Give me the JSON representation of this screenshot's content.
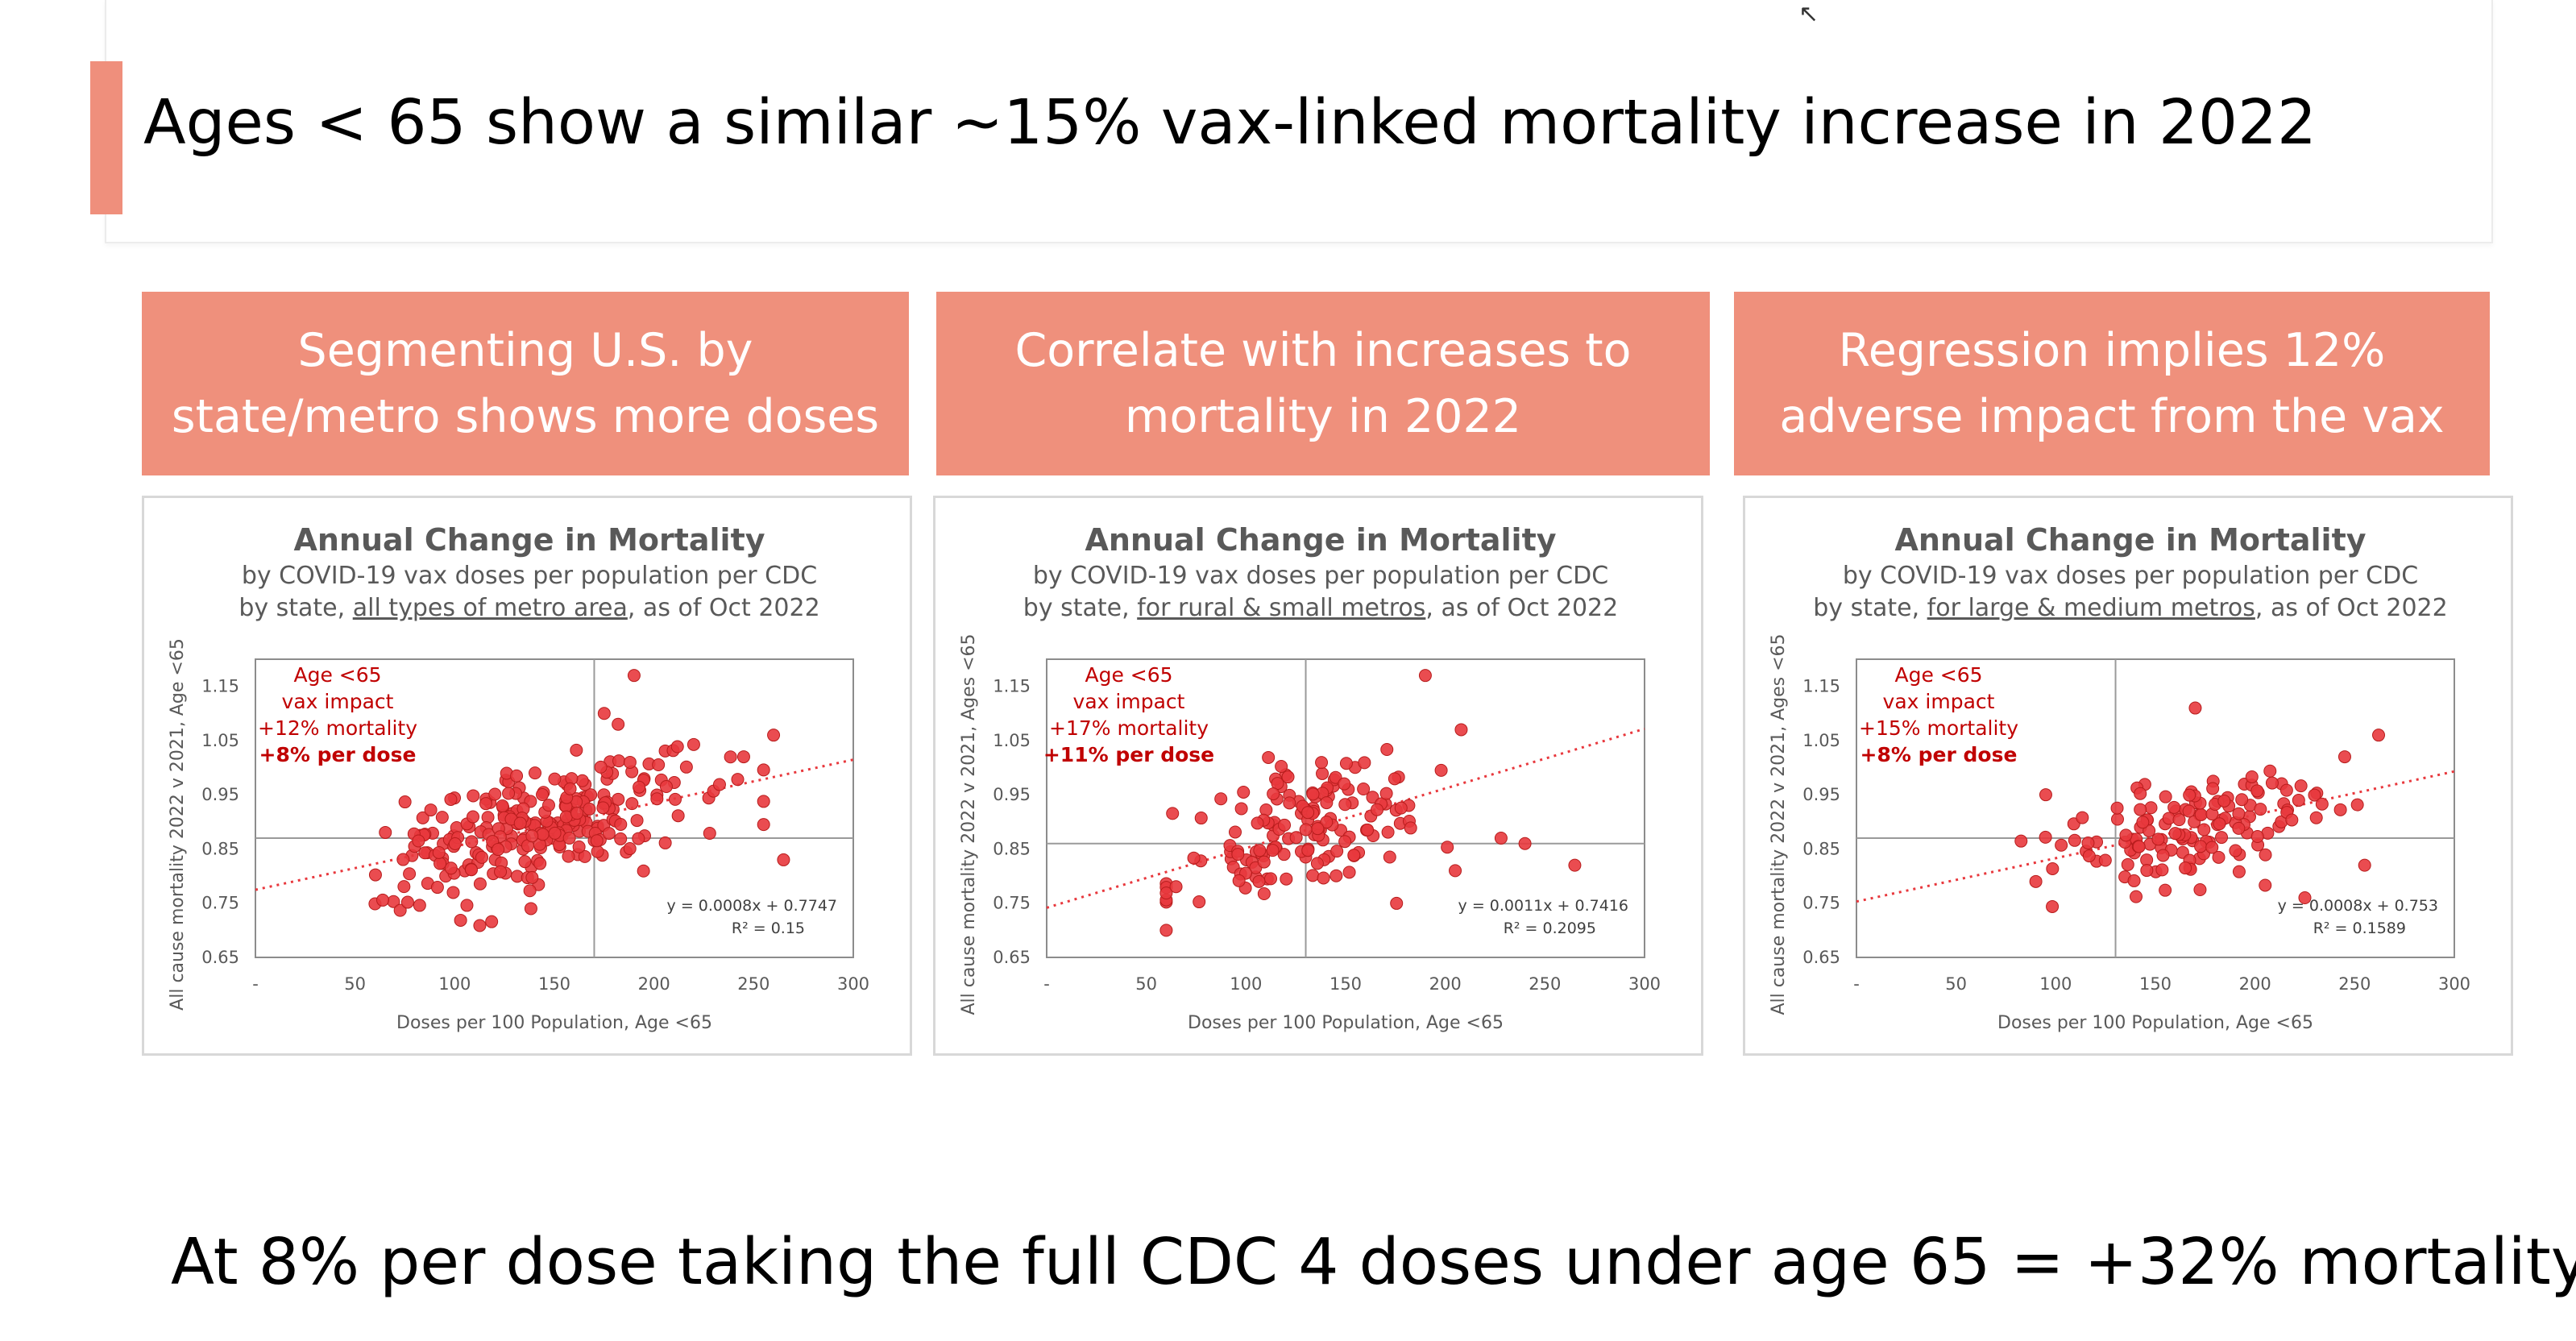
{
  "slide": {
    "title": "Ages < 65 show a similar ~15% vax-linked mortality increase in 2022",
    "footer": "At 8% per dose taking the full CDC 4 doses under age 65 = +32% mortality"
  },
  "headers": [
    "Segmenting U.S. by\nstate/metro shows more doses",
    "Correlate with increases to\nmortality in 2022",
    "Regression implies 12%\nadverse impact from the vax"
  ],
  "colors": {
    "accent": "#ef907c",
    "points": "#e8383d",
    "annotation": "#c00000"
  },
  "chart_data": [
    {
      "type": "scatter",
      "title": "Annual Change in Mortality",
      "subtitle1": "by COVID-19 vax doses per population per CDC",
      "subtitle2_pre": "by state, ",
      "subtitle2_link": "all types of metro area",
      "subtitle2_post": ", as of Oct 2022",
      "xlabel": "Doses per 100 Population, Age <65",
      "ylabel": "All cause mortality 2022 v 2021, Age <65",
      "xticks": [
        "-",
        "50",
        "100",
        "150",
        "200",
        "250",
        "300"
      ],
      "yticks": [
        "1.15",
        "1.05",
        "0.95",
        "0.85",
        "0.75",
        "0.65"
      ],
      "xlim": [
        0,
        300
      ],
      "ylim": [
        0.65,
        1.2
      ],
      "ref_x": 170,
      "ref_y": 0.87,
      "annotation": {
        "line1": "Age <65",
        "line2": "vax impact",
        "line3": "+12% mortality",
        "line4": "+8% per dose"
      },
      "trend": {
        "slope": 0.0008,
        "intercept": 0.7747,
        "equation": "y = 0.0008x + 0.7747",
        "r2": "R² = 0.15"
      },
      "seed": 7,
      "n": 260,
      "xmean": 140,
      "xsd": 38,
      "noise": 0.055,
      "outliers": [
        [
          190,
          1.17
        ],
        [
          260,
          1.06
        ],
        [
          265,
          0.83
        ],
        [
          245,
          1.02
        ],
        [
          175,
          1.1
        ],
        [
          182,
          1.08
        ]
      ]
    },
    {
      "type": "scatter",
      "title": "Annual Change in Mortality",
      "subtitle1": "by COVID-19 vax doses per population per CDC",
      "subtitle2_pre": "by state, ",
      "subtitle2_link": "for rural & small metros",
      "subtitle2_post": ", as of Oct 2022",
      "xlabel": "Doses per 100 Population, Age <65",
      "ylabel": "All cause mortality 2022 v 2021, Ages <65",
      "xticks": [
        "-",
        "50",
        "100",
        "150",
        "200",
        "250",
        "300"
      ],
      "yticks": [
        "1.15",
        "1.05",
        "0.95",
        "0.85",
        "0.75",
        "0.65"
      ],
      "xlim": [
        0,
        300
      ],
      "ylim": [
        0.65,
        1.2
      ],
      "ref_x": 130,
      "ref_y": 0.86,
      "annotation": {
        "line1": "Age <65",
        "line2": "vax impact",
        "line3": "+17% mortality",
        "line4": "+11% per dose"
      },
      "trend": {
        "slope": 0.0011,
        "intercept": 0.7416,
        "equation": "y = 0.0011x + 0.7416",
        "r2": "R² = 0.2095"
      },
      "seed": 21,
      "n": 150,
      "xmean": 130,
      "xsd": 32,
      "noise": 0.06,
      "outliers": [
        [
          190,
          1.17
        ],
        [
          240,
          0.86
        ],
        [
          265,
          0.82
        ],
        [
          208,
          1.07
        ],
        [
          205,
          0.81
        ],
        [
          228,
          0.87
        ]
      ]
    },
    {
      "type": "scatter",
      "title": "Annual Change in Mortality",
      "subtitle1": "by COVID-19 vax doses per population per CDC",
      "subtitle2_pre": "by state, ",
      "subtitle2_link": "for large & medium metros",
      "subtitle2_post": ", as of Oct 2022",
      "xlabel": "Doses per 100 Population, Age <65",
      "ylabel": "All cause mortality 2022 v 2021, Ages <65",
      "xticks": [
        "-",
        "50",
        "100",
        "150",
        "200",
        "250",
        "300"
      ],
      "yticks": [
        "1.15",
        "1.05",
        "0.95",
        "0.85",
        "0.75",
        "0.65"
      ],
      "xlim": [
        0,
        300
      ],
      "ylim": [
        0.65,
        1.2
      ],
      "ref_x": 130,
      "ref_y": 0.87,
      "annotation": {
        "line1": "Age <65",
        "line2": "vax impact",
        "line3": "+15% mortality",
        "line4": "+8% per dose"
      },
      "trend": {
        "slope": 0.0008,
        "intercept": 0.753,
        "equation": "y = 0.0008x + 0.753",
        "r2": "R² = 0.1589"
      },
      "seed": 42,
      "n": 140,
      "xmean": 165,
      "xsd": 35,
      "noise": 0.05,
      "outliers": [
        [
          95,
          0.95
        ],
        [
          90,
          0.79
        ],
        [
          170,
          1.11
        ],
        [
          262,
          1.06
        ],
        [
          255,
          0.82
        ],
        [
          245,
          1.02
        ],
        [
          225,
          0.76
        ]
      ]
    }
  ]
}
